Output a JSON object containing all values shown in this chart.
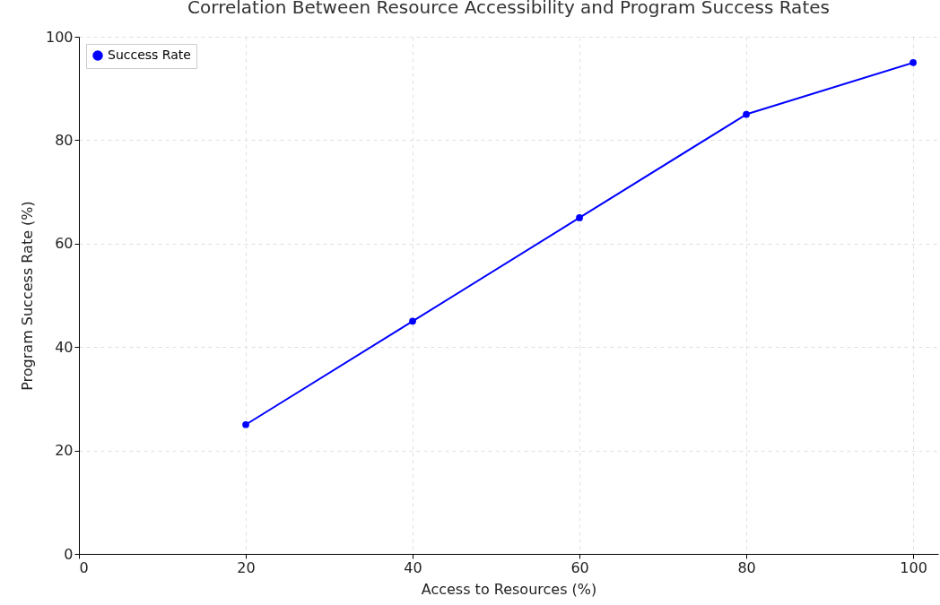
{
  "chart_data": {
    "type": "line",
    "title": "Correlation Between Resource Accessibility and Program Success Rates",
    "xlabel": "Access to Resources (%)",
    "ylabel": "Program Success Rate (%)",
    "x": [
      20,
      40,
      60,
      80,
      100
    ],
    "series": [
      {
        "name": "Success Rate",
        "color": "#0000ff",
        "values": [
          25,
          45,
          65,
          85,
          95
        ]
      }
    ],
    "xlim": [
      0,
      103
    ],
    "ylim": [
      0,
      100
    ],
    "xticks": [
      0,
      20,
      40,
      60,
      80,
      100
    ],
    "yticks": [
      0,
      20,
      40,
      60,
      80,
      100
    ],
    "grid": true,
    "legend": "top left",
    "marker": "circle",
    "line_style": "solid"
  }
}
